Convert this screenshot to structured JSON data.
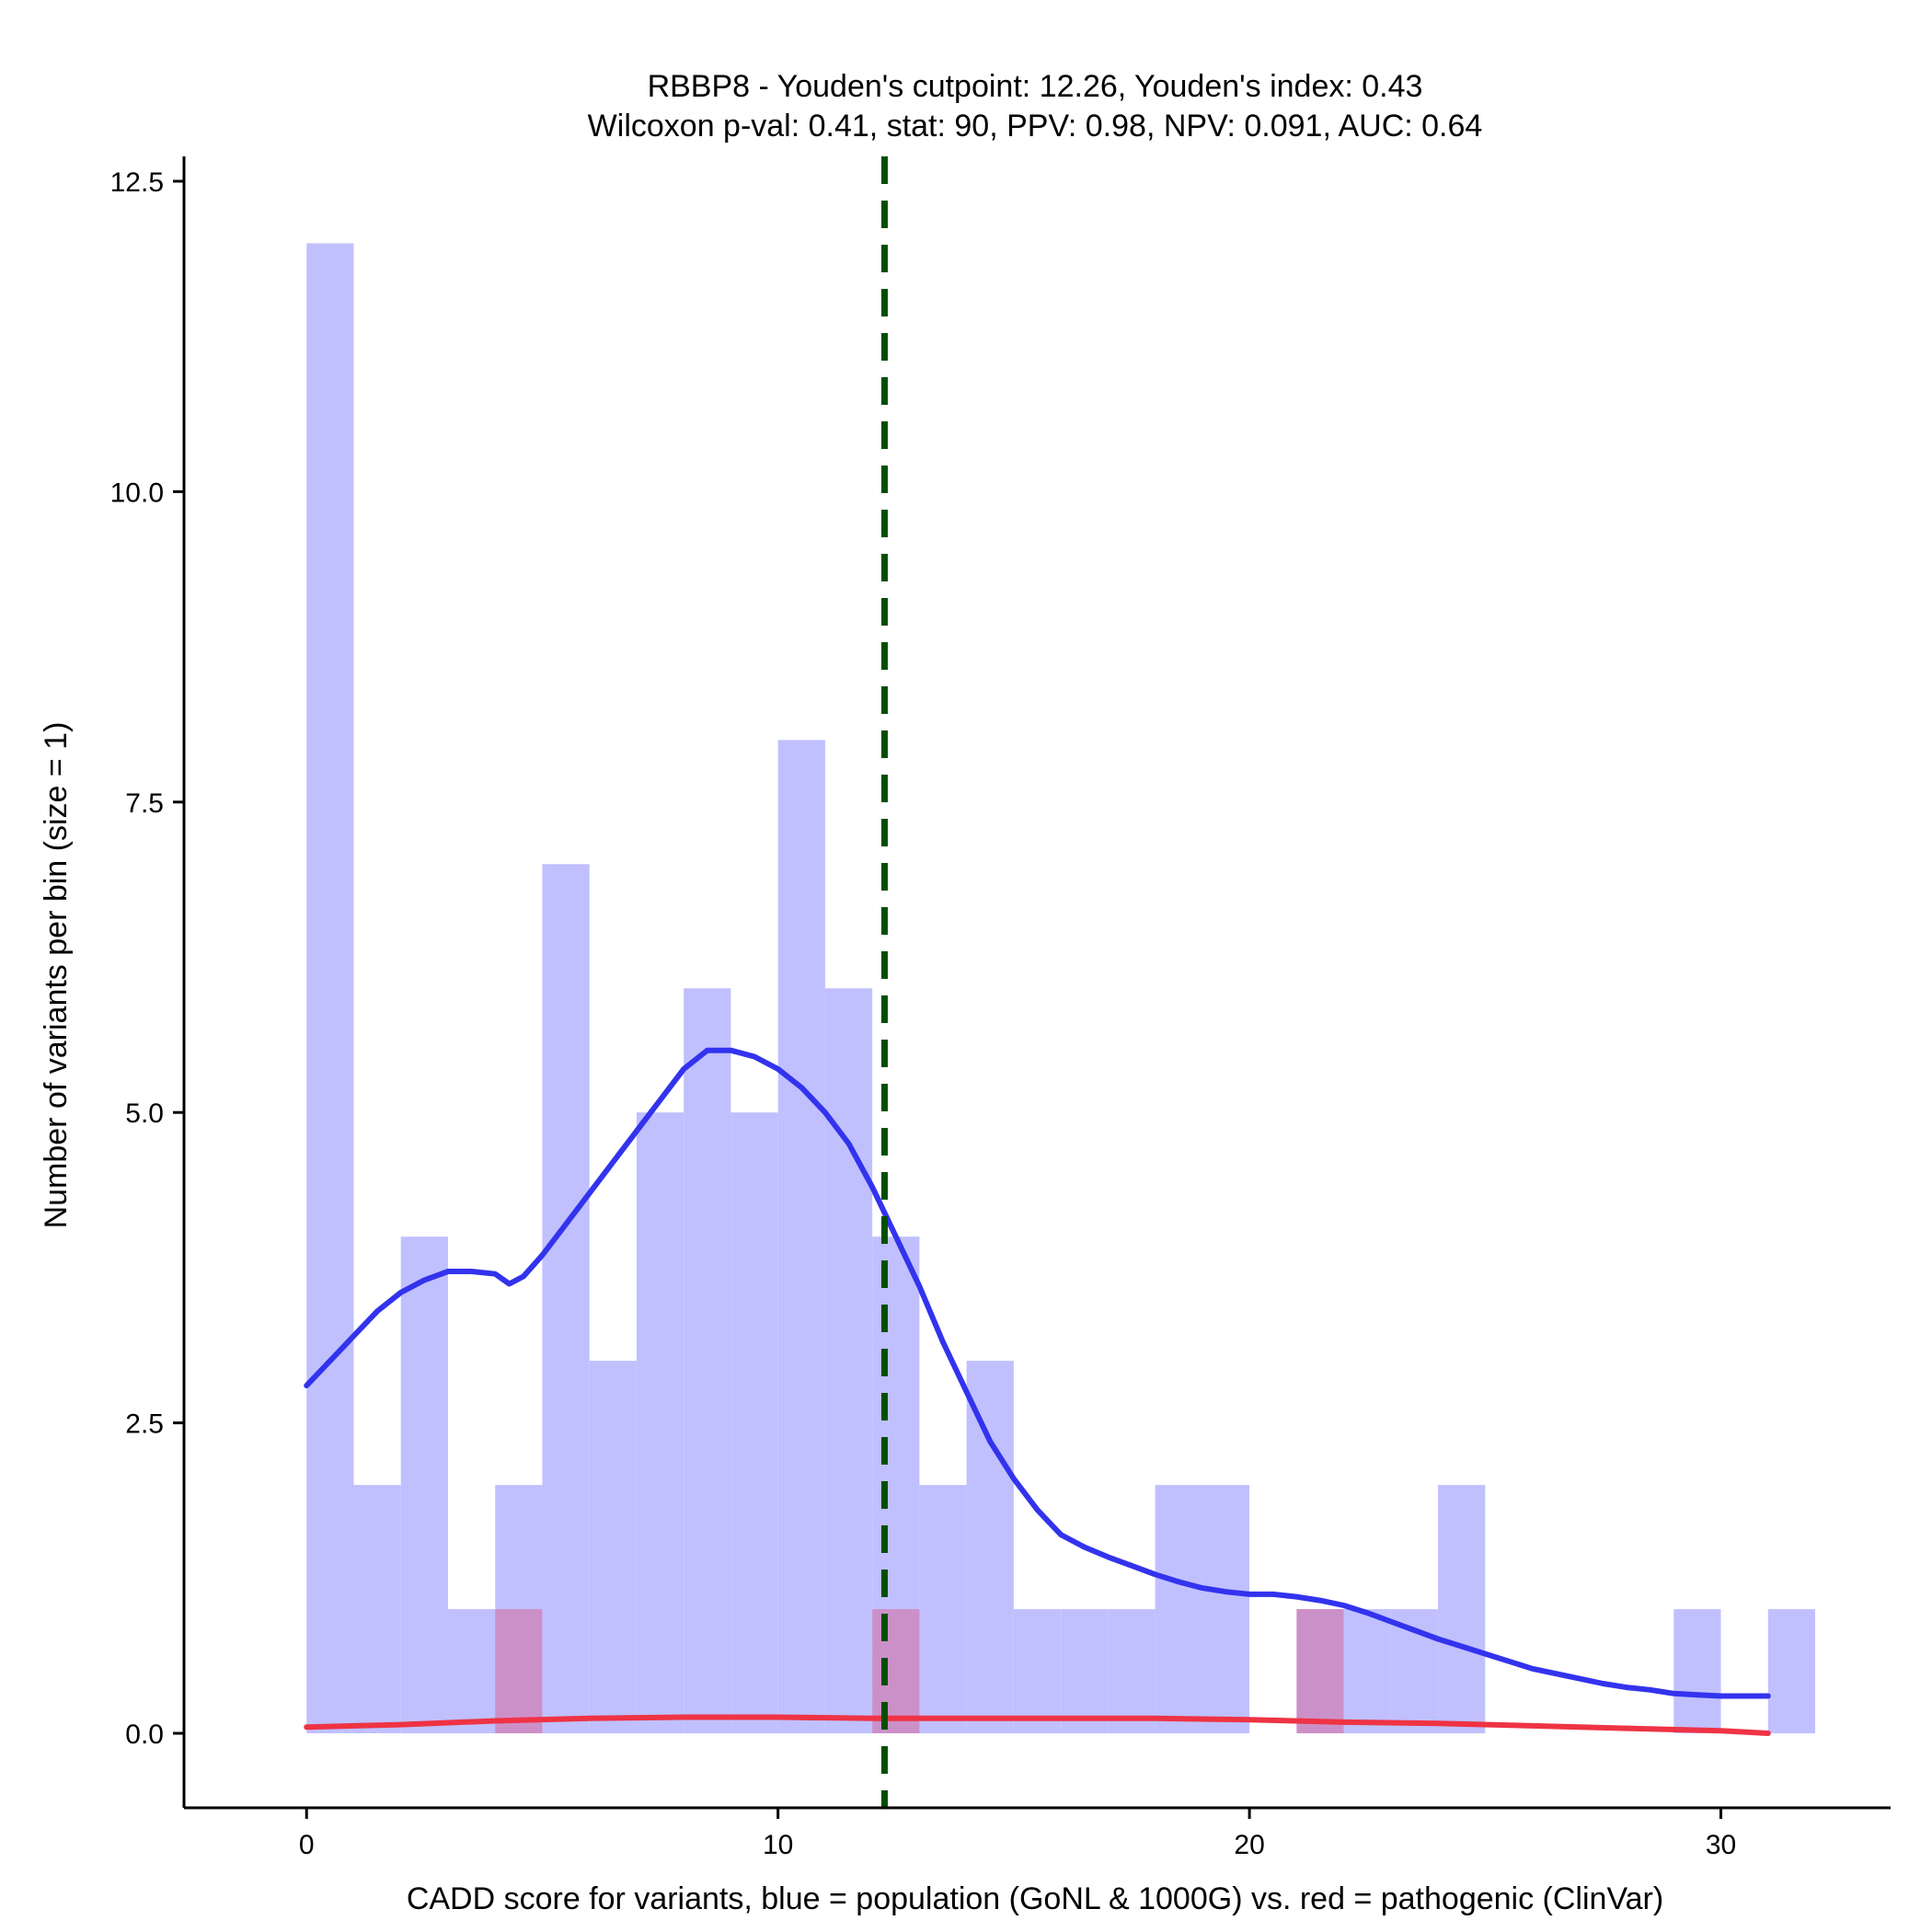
{
  "chart_data": {
    "type": "histogram",
    "title": "RBBP8 - Youden's cutpoint: 12.26, Youden's index: 0.43",
    "subtitle": "Wilcoxon p-val: 0.41, stat: 90, PPV: 0.98, NPV: 0.091, AUC: 0.64",
    "xlabel": "CADD score for variants, blue = population (GoNL & 1000G) vs. red = pathogenic (ClinVar)",
    "ylabel": "Number of variants per bin (size = 1)",
    "xlim": [
      -2.6,
      33.6
    ],
    "ylim": [
      -0.6,
      12.7
    ],
    "x_ticks": [
      0,
      10,
      20,
      30
    ],
    "x_tick_labels": [
      "0",
      "10",
      "20",
      "30"
    ],
    "y_ticks": [
      0.0,
      2.5,
      5.0,
      7.5,
      10.0,
      12.5
    ],
    "y_tick_labels": [
      "0.0",
      "2.5",
      "5.0",
      "7.5",
      "10.0",
      "12.5"
    ],
    "bin_width": 1,
    "series": [
      {
        "name": "population (GoNL & 1000G)",
        "color": "#0000ff",
        "bar_color": "#c0c0ff",
        "bin_starts": [
          0,
          1,
          2,
          3,
          4,
          5,
          6,
          7,
          8,
          9,
          10,
          11,
          12,
          13,
          14,
          15,
          16,
          17,
          18,
          19,
          20,
          21,
          22,
          23,
          24,
          25,
          26,
          27,
          28,
          29,
          30,
          31
        ],
        "counts": [
          12,
          2,
          4,
          1,
          2,
          7,
          3,
          5,
          6,
          5,
          8,
          6,
          4,
          2,
          3,
          1,
          1,
          1,
          2,
          2,
          0,
          0,
          1,
          1,
          2,
          0,
          0,
          0,
          0,
          1,
          0,
          1
        ]
      },
      {
        "name": "pathogenic (ClinVar)",
        "color": "#ff0000",
        "bar_color": "#cc90c8",
        "bin_starts": [
          4,
          12,
          21
        ],
        "counts": [
          1,
          1,
          1
        ]
      }
    ],
    "density_lines": [
      {
        "name": "population density",
        "color": "#3333ee",
        "x": [
          0.0,
          0.5,
          1.0,
          1.5,
          2.0,
          2.5,
          3.0,
          3.5,
          4.0,
          4.3,
          4.6,
          5.0,
          5.5,
          6.0,
          6.5,
          7.0,
          7.5,
          8.0,
          8.5,
          9.0,
          9.5,
          10.0,
          10.5,
          11.0,
          11.5,
          12.0,
          12.5,
          13.0,
          13.5,
          14.0,
          14.5,
          15.0,
          15.5,
          16.0,
          16.5,
          17.0,
          17.5,
          18.0,
          18.5,
          19.0,
          19.5,
          20.0,
          20.5,
          21.0,
          21.5,
          22.0,
          22.5,
          23.0,
          23.5,
          24.0,
          24.5,
          25.0,
          25.5,
          26.0,
          26.5,
          27.0,
          27.5,
          28.0,
          28.5,
          29.0,
          29.5,
          30.0,
          30.5,
          31.0
        ],
        "y": [
          2.8,
          3.0,
          3.2,
          3.4,
          3.55,
          3.65,
          3.72,
          3.72,
          3.7,
          3.62,
          3.68,
          3.85,
          4.1,
          4.35,
          4.6,
          4.85,
          5.1,
          5.35,
          5.5,
          5.5,
          5.45,
          5.35,
          5.2,
          5.0,
          4.75,
          4.4,
          4.0,
          3.6,
          3.15,
          2.75,
          2.35,
          2.05,
          1.8,
          1.6,
          1.5,
          1.42,
          1.35,
          1.28,
          1.22,
          1.17,
          1.14,
          1.12,
          1.12,
          1.1,
          1.07,
          1.03,
          0.97,
          0.9,
          0.83,
          0.76,
          0.7,
          0.64,
          0.58,
          0.52,
          0.48,
          0.44,
          0.4,
          0.37,
          0.35,
          0.32,
          0.31,
          0.3,
          0.3,
          0.3
        ]
      },
      {
        "name": "pathogenic density",
        "color": "#ee3344",
        "x": [
          0,
          2,
          4,
          6,
          8,
          10,
          12,
          14,
          16,
          18,
          20,
          22,
          24,
          26,
          28,
          30,
          31
        ],
        "y": [
          0.05,
          0.07,
          0.1,
          0.12,
          0.13,
          0.13,
          0.12,
          0.12,
          0.12,
          0.12,
          0.11,
          0.09,
          0.08,
          0.06,
          0.04,
          0.02,
          0.0
        ]
      }
    ],
    "cutpoint": {
      "x": 12.26,
      "color": "#005000",
      "style": "dashed"
    }
  }
}
